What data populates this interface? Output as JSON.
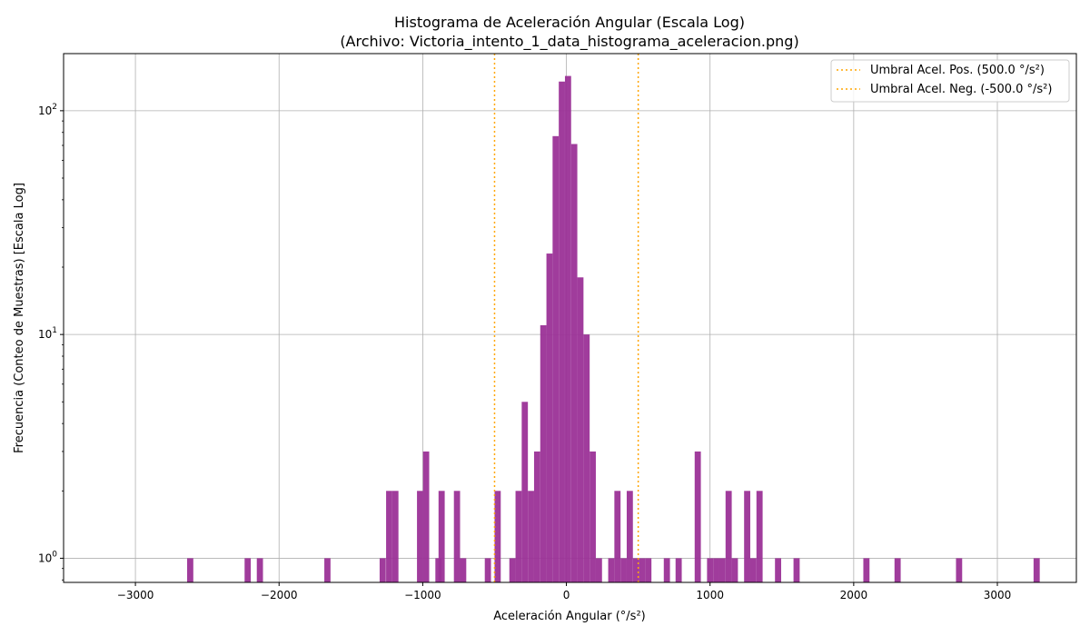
{
  "chart_data": {
    "type": "bar",
    "title": "Histograma de Aceleración Angular (Escala Log)",
    "subtitle": "(Archivo: Victoria_intento_1_data_histograma_aceleracion.png)",
    "xlabel": "Aceleración Angular (°/s²)",
    "ylabel": "Frecuencia (Conteo de Muestras) [Escala Log]",
    "xlim": [
      -3500,
      3550
    ],
    "ylim": [
      0.78,
      180
    ],
    "y_scale": "log",
    "x_ticks": [
      -3000,
      -2000,
      -1000,
      0,
      1000,
      2000,
      3000
    ],
    "x_tick_labels": [
      "−3000",
      "−2000",
      "−1000",
      "0",
      "1000",
      "2000",
      "3000"
    ],
    "y_ticks": [
      1,
      10,
      100
    ],
    "grid": true,
    "bar_color": "#9b3197",
    "bin_width": 43,
    "bars": [
      {
        "x": -2640,
        "y": 1
      },
      {
        "x": -2240,
        "y": 1
      },
      {
        "x": -2155,
        "y": 1
      },
      {
        "x": -1685,
        "y": 1
      },
      {
        "x": -1300,
        "y": 1
      },
      {
        "x": -1255,
        "y": 2
      },
      {
        "x": -1212,
        "y": 2
      },
      {
        "x": -1040,
        "y": 2
      },
      {
        "x": -998,
        "y": 3
      },
      {
        "x": -912,
        "y": 1
      },
      {
        "x": -890,
        "y": 2
      },
      {
        "x": -783,
        "y": 2
      },
      {
        "x": -740,
        "y": 1
      },
      {
        "x": -568,
        "y": 1
      },
      {
        "x": -500,
        "y": 2
      },
      {
        "x": -397,
        "y": 1
      },
      {
        "x": -354,
        "y": 2
      },
      {
        "x": -311,
        "y": 5
      },
      {
        "x": -268,
        "y": 2
      },
      {
        "x": -225,
        "y": 3
      },
      {
        "x": -182,
        "y": 11
      },
      {
        "x": -139,
        "y": 23
      },
      {
        "x": -96,
        "y": 77
      },
      {
        "x": -53,
        "y": 135
      },
      {
        "x": -10,
        "y": 143
      },
      {
        "x": 33,
        "y": 71
      },
      {
        "x": 76,
        "y": 18
      },
      {
        "x": 119,
        "y": 10
      },
      {
        "x": 162,
        "y": 3
      },
      {
        "x": 205,
        "y": 1
      },
      {
        "x": 291,
        "y": 1
      },
      {
        "x": 334,
        "y": 2
      },
      {
        "x": 377,
        "y": 1
      },
      {
        "x": 420,
        "y": 2
      },
      {
        "x": 463,
        "y": 1
      },
      {
        "x": 506,
        "y": 1
      },
      {
        "x": 549,
        "y": 1
      },
      {
        "x": 678,
        "y": 1
      },
      {
        "x": 760,
        "y": 1
      },
      {
        "x": 893,
        "y": 3
      },
      {
        "x": 979,
        "y": 1
      },
      {
        "x": 1022,
        "y": 1
      },
      {
        "x": 1065,
        "y": 1
      },
      {
        "x": 1108,
        "y": 2
      },
      {
        "x": 1151,
        "y": 1
      },
      {
        "x": 1237,
        "y": 2
      },
      {
        "x": 1280,
        "y": 1
      },
      {
        "x": 1323,
        "y": 2
      },
      {
        "x": 1452,
        "y": 1
      },
      {
        "x": 1581,
        "y": 1
      },
      {
        "x": 2067,
        "y": 1
      },
      {
        "x": 2284,
        "y": 1
      },
      {
        "x": 2712,
        "y": 1
      },
      {
        "x": 3252,
        "y": 1
      }
    ],
    "thresholds": [
      {
        "name": "Umbral Acel. Pos. (500.0 °/s²)",
        "value": 500,
        "color": "#ffa500"
      },
      {
        "name": "Umbral Acel. Neg. (-500.0 °/s²)",
        "value": -500,
        "color": "#ffa500"
      }
    ],
    "legend_position": "top-right"
  }
}
